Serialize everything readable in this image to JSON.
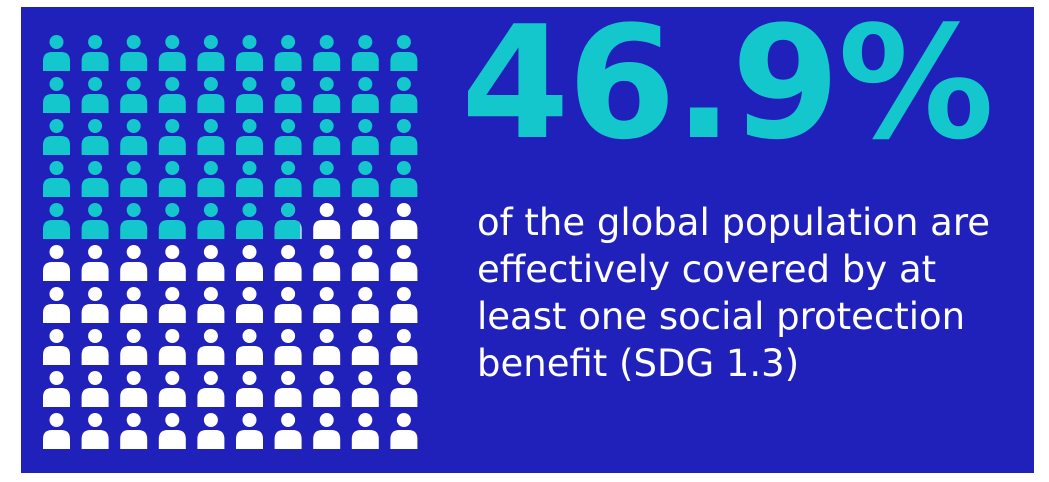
{
  "theme": {
    "background": "#2020BB",
    "covered_color": "#13C7CC",
    "uncovered_color": "#FFFFFF",
    "text_color": "#FFFFFF"
  },
  "headline": {
    "value": "46.9%",
    "caption": "of the global population are effectively covered by at least one social protection benefit (SDG 1.3)"
  },
  "chart_data": {
    "type": "pictogram",
    "grid": {
      "rows": 10,
      "cols": 10
    },
    "total_icons": 100,
    "covered_percent": 46.9,
    "series": [
      {
        "value": 46.9,
        "color": "#13C7CC"
      },
      {
        "value": 53.1,
        "color": "#FFFFFF"
      }
    ]
  }
}
